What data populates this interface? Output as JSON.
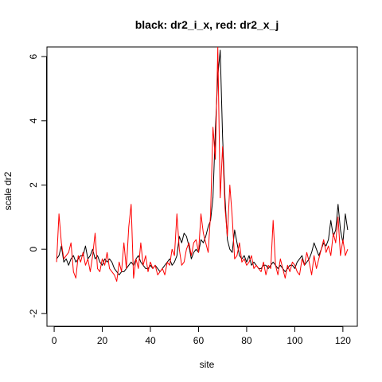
{
  "chart_data": {
    "type": "line",
    "title": "black: dr2_i_x, red: dr2_x_j",
    "xlabel": "site",
    "ylabel": "scale dr2",
    "xlim": [
      -3,
      126
    ],
    "ylim": [
      -2.4,
      6.3
    ],
    "x_ticks": [
      0,
      20,
      40,
      60,
      80,
      100,
      120
    ],
    "y_ticks": [
      -2,
      0,
      2,
      4,
      6
    ],
    "grid": false,
    "series": [
      {
        "color": "#000000",
        "x": [
          1,
          2,
          3,
          4,
          5,
          6,
          7,
          8,
          9,
          10,
          11,
          12,
          13,
          14,
          15,
          16,
          17,
          18,
          19,
          20,
          21,
          22,
          23,
          24,
          25,
          26,
          27,
          28,
          29,
          30,
          31,
          32,
          33,
          34,
          35,
          36,
          37,
          38,
          39,
          40,
          41,
          42,
          43,
          44,
          45,
          46,
          47,
          48,
          49,
          50,
          51,
          52,
          53,
          54,
          55,
          56,
          57,
          58,
          59,
          60,
          61,
          62,
          63,
          64,
          65,
          66,
          67,
          68,
          69,
          70,
          71,
          72,
          73,
          74,
          75,
          76,
          77,
          78,
          79,
          80,
          81,
          82,
          83,
          84,
          85,
          86,
          87,
          88,
          89,
          90,
          91,
          92,
          93,
          94,
          95,
          96,
          97,
          98,
          99,
          100,
          101,
          102,
          103,
          104,
          105,
          106,
          107,
          108,
          109,
          110,
          111,
          112,
          113,
          114,
          115,
          116,
          117,
          118,
          119,
          120,
          121,
          122
        ],
        "values": [
          -0.3,
          -0.2,
          0.1,
          -0.4,
          -0.3,
          -0.5,
          -0.3,
          -0.2,
          -0.4,
          -0.3,
          -0.2,
          -0.2,
          0.1,
          -0.3,
          -0.2,
          0.0,
          -0.3,
          -0.2,
          -0.4,
          -0.5,
          -0.3,
          -0.4,
          -0.3,
          -0.4,
          -0.6,
          -0.7,
          -0.8,
          -0.7,
          -0.7,
          -0.6,
          -0.5,
          -0.4,
          -0.5,
          -0.3,
          -0.2,
          -0.4,
          -0.5,
          -0.6,
          -0.6,
          -0.5,
          -0.6,
          -0.5,
          -0.6,
          -0.7,
          -0.6,
          -0.5,
          -0.4,
          -0.3,
          -0.5,
          -0.4,
          -0.2,
          0.4,
          0.2,
          0.5,
          0.4,
          0.1,
          -0.3,
          -0.1,
          0.0,
          -0.1,
          0.3,
          0.2,
          0.4,
          0.7,
          0.9,
          1.6,
          3.7,
          5.4,
          6.2,
          3.5,
          1.6,
          0.3,
          0.0,
          -0.1,
          0.6,
          0.2,
          -0.2,
          -0.3,
          -0.2,
          -0.4,
          -0.2,
          -0.5,
          -0.4,
          -0.5,
          -0.6,
          -0.6,
          -0.5,
          -0.5,
          -0.6,
          -0.5,
          -0.4,
          -0.5,
          -0.6,
          -0.5,
          -0.6,
          -0.7,
          -0.6,
          -0.5,
          -0.5,
          -0.6,
          -0.4,
          -0.3,
          -0.2,
          -0.5,
          -0.4,
          -0.3,
          -0.1,
          0.2,
          0.0,
          -0.2,
          0.0,
          0.2,
          0.1,
          0.3,
          0.9,
          0.4,
          0.6,
          1.4,
          0.6,
          0.2,
          1.1,
          0.6
        ]
      },
      {
        "color": "#ff0000",
        "x": [
          1,
          2,
          3,
          4,
          5,
          6,
          7,
          8,
          9,
          10,
          11,
          12,
          13,
          14,
          15,
          16,
          17,
          18,
          19,
          20,
          21,
          22,
          23,
          24,
          25,
          26,
          27,
          28,
          29,
          30,
          31,
          32,
          33,
          34,
          35,
          36,
          37,
          38,
          39,
          40,
          41,
          42,
          43,
          44,
          45,
          46,
          47,
          48,
          49,
          50,
          51,
          52,
          53,
          54,
          55,
          56,
          57,
          58,
          59,
          60,
          61,
          62,
          63,
          64,
          65,
          66,
          67,
          68,
          69,
          70,
          71,
          72,
          73,
          74,
          75,
          76,
          77,
          78,
          79,
          80,
          81,
          82,
          83,
          84,
          85,
          86,
          87,
          88,
          89,
          90,
          91,
          92,
          93,
          94,
          95,
          96,
          97,
          98,
          99,
          100,
          101,
          102,
          103,
          104,
          105,
          106,
          107,
          108,
          109,
          110,
          111,
          112,
          113,
          114,
          115,
          116,
          117,
          118,
          119,
          120,
          121,
          122
        ],
        "values": [
          -0.4,
          1.1,
          0.2,
          -0.3,
          -0.2,
          -0.1,
          0.2,
          -0.7,
          -0.9,
          -0.2,
          -0.4,
          -0.1,
          -0.5,
          -0.3,
          -0.7,
          -0.2,
          0.5,
          -0.6,
          -0.7,
          -0.3,
          -0.5,
          -0.1,
          -0.6,
          -0.7,
          -0.8,
          -1.0,
          -0.4,
          -0.7,
          0.2,
          -0.6,
          0.7,
          1.4,
          -0.9,
          -0.3,
          -0.6,
          0.2,
          -0.5,
          -0.2,
          -0.7,
          -0.4,
          -0.6,
          -0.5,
          -0.8,
          -0.7,
          -0.6,
          -0.8,
          -0.4,
          -0.5,
          0.0,
          -0.2,
          1.1,
          0.0,
          -0.5,
          -0.4,
          0.0,
          0.2,
          -0.2,
          0.2,
          0.3,
          -0.1,
          1.1,
          0.5,
          0.2,
          -0.1,
          1.1,
          3.8,
          2.8,
          6.3,
          1.6,
          3.2,
          1.3,
          0.4,
          2.0,
          1.0,
          -0.3,
          -0.2,
          0.2,
          -0.4,
          -0.3,
          -0.5,
          -0.4,
          -0.2,
          -0.6,
          -0.5,
          -0.6,
          -0.7,
          -0.4,
          -0.8,
          -0.5,
          -0.6,
          0.9,
          -0.5,
          -0.8,
          -0.3,
          -0.6,
          -0.9,
          -0.5,
          -0.7,
          -0.4,
          -0.5,
          -0.7,
          -0.8,
          -0.3,
          -0.5,
          -0.1,
          -0.4,
          -0.8,
          -0.2,
          -0.6,
          -0.3,
          0.0,
          0.3,
          -0.1,
          0.1,
          -0.2,
          0.5,
          0.2,
          1.0,
          -0.2,
          0.3,
          -0.2,
          0.0
        ]
      }
    ]
  }
}
